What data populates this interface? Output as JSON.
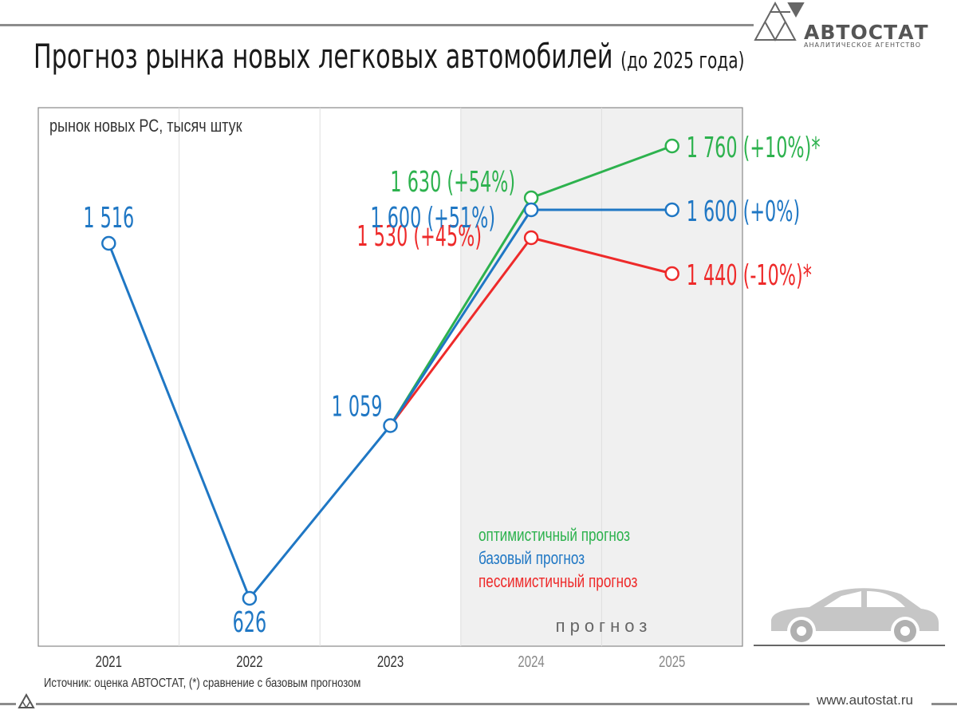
{
  "title": "Прогноз рынка новых легковых автомобилей",
  "subtitle": "(до 2025 года)",
  "logo": {
    "name": "АВТОСТАТ",
    "tagline": "АНАЛИТИЧЕСКОЕ АГЕНТСТВО",
    "icon": "autostat-triangle-logo-icon"
  },
  "source": "Источник: оценка АВТОСТАТ, (*) сравнение с базовым прогнозом",
  "website": "www.autostat.ru",
  "car_icon": "car-silhouette-icon",
  "chart_data": {
    "type": "line",
    "ylabel": "рынок новых РС, тысяч штук",
    "categories": [
      "2021",
      "2022",
      "2023",
      "2024",
      "2025"
    ],
    "forecast_label": "прогноз",
    "forecast_categories": [
      "2024",
      "2025"
    ],
    "series": [
      {
        "name": "базовый прогноз",
        "color": "#1f77c4",
        "values": [
          1516,
          626,
          1059,
          1600,
          1600
        ],
        "labels": [
          "1 516",
          "626",
          "1 059",
          "1 600 (+51%)",
          "1 600 (+0%)"
        ]
      },
      {
        "name": "оптимистичный прогноз",
        "color": "#2db24e",
        "values": [
          null,
          null,
          1059,
          1630,
          1760
        ],
        "labels": [
          "",
          "",
          "",
          "1 630 (+54%)",
          "1 760 (+10%)*"
        ]
      },
      {
        "name": "пессимистичный прогноз",
        "color": "#ee2a2a",
        "values": [
          null,
          null,
          1059,
          1530,
          1440
        ],
        "labels": [
          "",
          "",
          "",
          "1 530 (+45%)",
          "1 440 (-10%)*"
        ]
      }
    ],
    "legend_order": [
      "оптимистичный прогноз",
      "базовый прогноз",
      "пессимистичный прогноз"
    ],
    "legend_position": "bottom-right",
    "grid": true
  }
}
